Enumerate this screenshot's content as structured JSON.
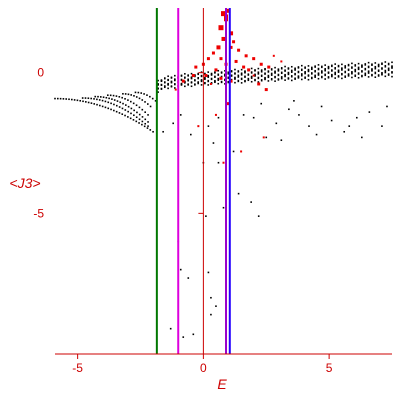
{
  "chart_data": {
    "type": "scatter",
    "title": "",
    "xlabel": "E",
    "ylabel": "<J3>",
    "xlim": [
      -5.9,
      7.5
    ],
    "ylim": [
      -10,
      2.3
    ],
    "x_ticks": [
      {
        "value": -5,
        "label": "-5"
      },
      {
        "value": 0,
        "label": "0"
      },
      {
        "value": 5,
        "label": "5"
      }
    ],
    "y_ticks": [
      {
        "value": 0,
        "label": "0"
      },
      {
        "value": -5,
        "label": "-5"
      }
    ],
    "grid": false,
    "colors": {
      "axes": "#cc0000",
      "black_points": "#000000",
      "red_points": "#ee0000",
      "line_green": "#007700",
      "line_magenta": "#dd00dd",
      "line_blue": "#2200ff",
      "line_purple": "#9900cc"
    },
    "vertical_lines": [
      {
        "x": -1.85,
        "color": "#007700"
      },
      {
        "x": -1.0,
        "color": "#dd00dd"
      },
      {
        "x": 0.9,
        "color": "#9900cc"
      },
      {
        "x": 1.05,
        "color": "#2200ff"
      }
    ],
    "black_series": {
      "branches": [
        {
          "x_start": -5.9,
          "y_start": -0.92,
          "x_end": -2.0,
          "y_end": -2.1
        },
        {
          "x_start": -4.8,
          "y_start": -0.9,
          "x_end": -2.2,
          "y_end": -1.9
        },
        {
          "x_start": -4.3,
          "y_start": -0.85,
          "x_end": -2.2,
          "y_end": -1.75
        },
        {
          "x_start": -3.8,
          "y_start": -0.8,
          "x_end": -2.2,
          "y_end": -1.5
        },
        {
          "x_start": -3.2,
          "y_start": -0.75,
          "x_end": -2.1,
          "y_end": -1.2
        },
        {
          "x_start": -2.7,
          "y_start": -0.7,
          "x_end": -1.9,
          "y_end": -1.0
        }
      ],
      "band": {
        "x_start": -1.8,
        "x_end": 7.5,
        "y_low_start": -0.65,
        "y_high_start": -0.3,
        "y_low_end": -0.1,
        "y_high_end": 0.35
      },
      "scatter": [
        [
          -1.6,
          -2.1
        ],
        [
          -1.2,
          -1.8
        ],
        [
          -0.9,
          -1.5
        ],
        [
          -0.5,
          -2.2
        ],
        [
          -1.0,
          -6.0
        ],
        [
          -0.9,
          -7.0
        ],
        [
          -0.6,
          -7.3
        ],
        [
          -0.8,
          -9.4
        ],
        [
          -1.3,
          -9.1
        ],
        [
          -0.4,
          -9.3
        ],
        [
          0.3,
          -8.0
        ],
        [
          0.2,
          -7.1
        ],
        [
          0.1,
          -5.1
        ],
        [
          0.8,
          -4.8
        ],
        [
          0.6,
          -3.2
        ],
        [
          1.4,
          -4.3
        ],
        [
          1.9,
          -4.6
        ],
        [
          2.2,
          -5.1
        ],
        [
          0.5,
          -8.3
        ],
        [
          0.3,
          -8.6
        ],
        [
          2.5,
          -2.3
        ],
        [
          2.9,
          -1.8
        ],
        [
          3.4,
          -1.3
        ],
        [
          3.8,
          -1.5
        ],
        [
          4.2,
          -1.9
        ],
        [
          4.7,
          -1.2
        ],
        [
          5.1,
          -1.7
        ],
        [
          5.6,
          -2.1
        ],
        [
          6.1,
          -1.6
        ],
        [
          6.6,
          -1.4
        ],
        [
          7.1,
          -1.9
        ],
        [
          7.3,
          -1.2
        ],
        [
          3.1,
          -2.4
        ],
        [
          4.5,
          -2.2
        ],
        [
          5.8,
          -1.9
        ],
        [
          0.6,
          -1.6
        ],
        [
          0.2,
          -1.9
        ],
        [
          1.6,
          -1.5
        ],
        [
          2.3,
          -1.1
        ],
        [
          6.3,
          -2.3
        ],
        [
          0.0,
          -3.2
        ],
        [
          1.2,
          -2.8
        ],
        [
          0.4,
          -2.5
        ],
        [
          3.6,
          -1.0
        ],
        [
          2.0,
          -1.6
        ]
      ]
    },
    "red_series": {
      "points": [
        [
          0.8,
          2.1,
          5
        ],
        [
          1.0,
          2.2,
          4
        ],
        [
          0.9,
          1.9,
          4
        ],
        [
          0.7,
          1.6,
          5
        ],
        [
          1.1,
          1.4,
          4
        ],
        [
          0.8,
          1.2,
          4
        ],
        [
          1.2,
          1.1,
          3
        ],
        [
          0.6,
          0.9,
          4
        ],
        [
          1.4,
          0.8,
          3
        ],
        [
          0.4,
          0.7,
          3
        ],
        [
          0.2,
          0.5,
          3
        ],
        [
          1.7,
          0.6,
          3
        ],
        [
          2.0,
          0.5,
          3
        ],
        [
          0.0,
          0.3,
          3
        ],
        [
          -0.3,
          0.2,
          3
        ],
        [
          1.3,
          0.4,
          3
        ],
        [
          0.9,
          0.3,
          3
        ],
        [
          0.5,
          0.1,
          3
        ],
        [
          0.1,
          -0.1,
          3
        ],
        [
          -0.4,
          -0.1,
          3
        ],
        [
          2.3,
          0.3,
          3
        ],
        [
          2.6,
          0.2,
          3
        ],
        [
          1.8,
          0.1,
          3
        ],
        [
          2.8,
          0.6,
          2
        ],
        [
          0.7,
          -0.2,
          3
        ],
        [
          1.1,
          -0.3,
          3
        ],
        [
          2.5,
          -0.6,
          3
        ],
        [
          2.2,
          -0.4,
          3
        ],
        [
          -0.8,
          -0.3,
          3
        ],
        [
          -1.1,
          -0.6,
          2
        ],
        [
          1.0,
          -1.1,
          3
        ],
        [
          0.5,
          -1.5,
          2
        ],
        [
          2.4,
          -2.3,
          2
        ],
        [
          1.5,
          -2.8,
          2
        ],
        [
          0.9,
          2.0,
          4
        ],
        [
          1.1,
          0.9,
          3
        ],
        [
          0.7,
          0.5,
          3
        ],
        [
          1.6,
          0.2,
          3
        ],
        [
          0.3,
          -0.4,
          2
        ],
        [
          2.0,
          -0.1,
          2
        ],
        [
          -0.2,
          -1.9,
          2
        ],
        [
          0.8,
          -3.2,
          2
        ],
        [
          3.1,
          0.4,
          2
        ]
      ]
    }
  }
}
